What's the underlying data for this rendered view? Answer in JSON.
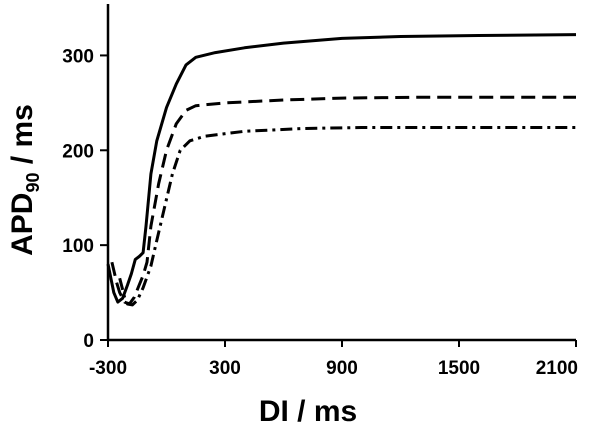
{
  "chart_data": {
    "type": "line",
    "xlabel": "DI / ms",
    "ylabel_main": "APD",
    "ylabel_sub": "90",
    "ylabel_tail": " / ms",
    "xlim": [
      -300,
      2100
    ],
    "ylim": [
      0,
      350
    ],
    "x_ticks": [
      -300,
      300,
      900,
      1500,
      2100
    ],
    "y_ticks": [
      0,
      100,
      200,
      300
    ],
    "x_tick_labels": [
      "-300",
      "300",
      "900",
      "1500",
      "2100"
    ],
    "y_tick_labels": [
      "0",
      "100",
      "200",
      "300"
    ],
    "series": [
      {
        "style": "solid",
        "points": [
          [
            -300,
            80
          ],
          [
            -270,
            50
          ],
          [
            -250,
            40
          ],
          [
            -225,
            44
          ],
          [
            -200,
            58
          ],
          [
            -180,
            70
          ],
          [
            -160,
            85
          ],
          [
            -140,
            88
          ],
          [
            -120,
            92
          ],
          [
            -105,
            120
          ],
          [
            -80,
            175
          ],
          [
            -50,
            210
          ],
          [
            0,
            245
          ],
          [
            50,
            270
          ],
          [
            100,
            290
          ],
          [
            150,
            298
          ],
          [
            250,
            303
          ],
          [
            400,
            308
          ],
          [
            600,
            313
          ],
          [
            900,
            318
          ],
          [
            1200,
            320
          ],
          [
            1600,
            321
          ],
          [
            2100,
            322
          ]
        ]
      },
      {
        "style": "dashed",
        "points": [
          [
            -280,
            82
          ],
          [
            -255,
            60
          ],
          [
            -240,
            50
          ],
          [
            -215,
            40
          ],
          [
            -190,
            38
          ],
          [
            -165,
            45
          ],
          [
            -140,
            58
          ],
          [
            -120,
            68
          ],
          [
            -100,
            82
          ],
          [
            -80,
            120
          ],
          [
            -40,
            165
          ],
          [
            0,
            200
          ],
          [
            50,
            228
          ],
          [
            100,
            242
          ],
          [
            150,
            247
          ],
          [
            300,
            250
          ],
          [
            600,
            253
          ],
          [
            900,
            255
          ],
          [
            1300,
            256
          ],
          [
            1700,
            256
          ],
          [
            2100,
            256
          ]
        ]
      },
      {
        "style": "dashdot",
        "points": [
          [
            -240,
            65
          ],
          [
            -215,
            45
          ],
          [
            -200,
            38
          ],
          [
            -175,
            37
          ],
          [
            -150,
            42
          ],
          [
            -120,
            55
          ],
          [
            -80,
            78
          ],
          [
            -50,
            105
          ],
          [
            -10,
            140
          ],
          [
            30,
            175
          ],
          [
            70,
            200
          ],
          [
            120,
            210
          ],
          [
            200,
            215
          ],
          [
            400,
            220
          ],
          [
            700,
            223
          ],
          [
            1000,
            224
          ],
          [
            1400,
            224
          ],
          [
            2100,
            224
          ]
        ]
      }
    ]
  }
}
